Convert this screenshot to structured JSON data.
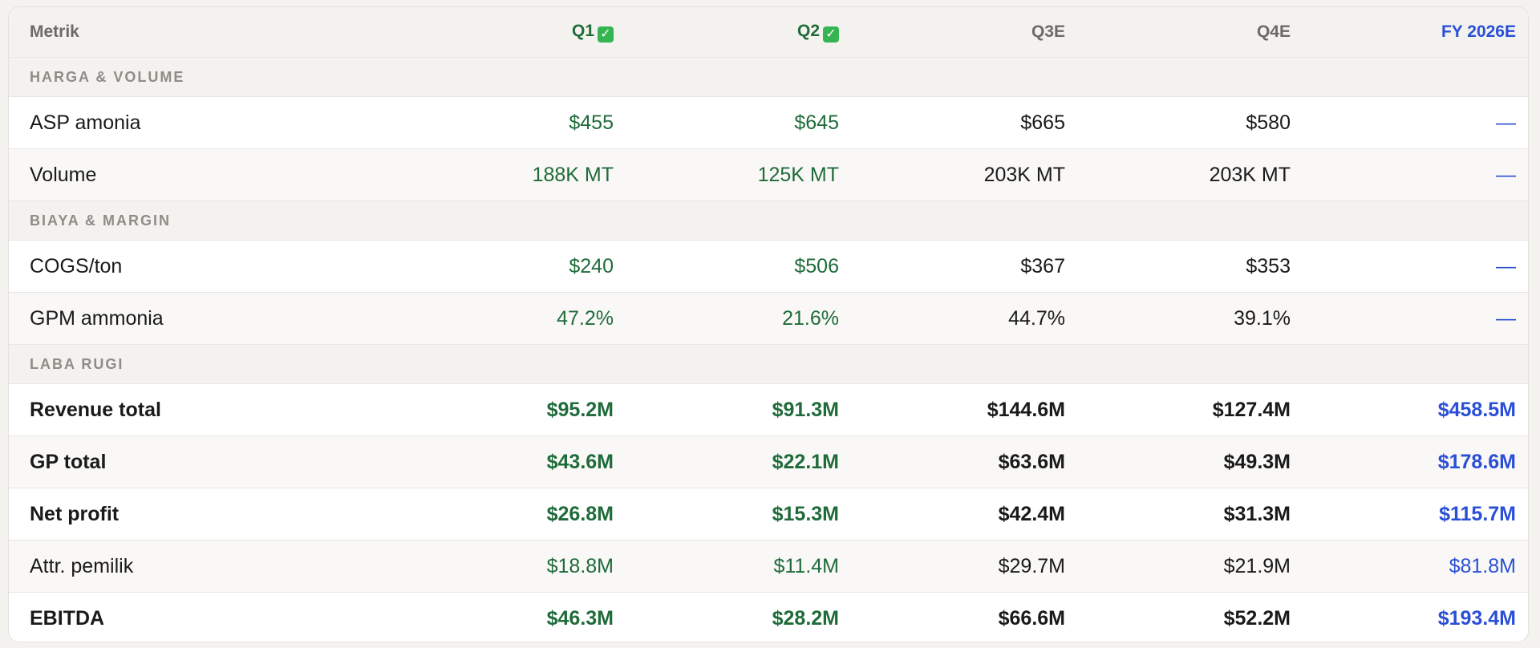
{
  "table": {
    "headers": [
      "Metrik",
      "Q1",
      "Q2",
      "Q3E",
      "Q4E",
      "FY 2026E"
    ],
    "check_icon": "✓",
    "colors": {
      "actual": "#1f6b3a",
      "fy": "#2a4fd6",
      "estimate": "#1a1a1a",
      "check": "#34b552"
    },
    "sections": [
      {
        "title": "HARGA & VOLUME",
        "rows": [
          {
            "label": "ASP amonia",
            "values": [
              "$455",
              "$645",
              "$665",
              "$580",
              "—"
            ],
            "bold": false
          },
          {
            "label": "Volume",
            "values": [
              "188K MT",
              "125K MT",
              "203K MT",
              "203K MT",
              "—"
            ],
            "bold": false
          }
        ]
      },
      {
        "title": "BIAYA & MARGIN",
        "rows": [
          {
            "label": "COGS/ton",
            "values": [
              "$240",
              "$506",
              "$367",
              "$353",
              "—"
            ],
            "bold": false
          },
          {
            "label": "GPM ammonia",
            "values": [
              "47.2%",
              "21.6%",
              "44.7%",
              "39.1%",
              "—"
            ],
            "bold": false
          }
        ]
      },
      {
        "title": "LABA RUGI",
        "rows": [
          {
            "label": "Revenue total",
            "values": [
              "$95.2M",
              "$91.3M",
              "$144.6M",
              "$127.4M",
              "$458.5M"
            ],
            "bold": true
          },
          {
            "label": "GP total",
            "values": [
              "$43.6M",
              "$22.1M",
              "$63.6M",
              "$49.3M",
              "$178.6M"
            ],
            "bold": true
          },
          {
            "label": "Net profit",
            "values": [
              "$26.8M",
              "$15.3M",
              "$42.4M",
              "$31.3M",
              "$115.7M"
            ],
            "bold": true
          },
          {
            "label": "Attr. pemilik",
            "values": [
              "$18.8M",
              "$11.4M",
              "$29.7M",
              "$21.9M",
              "$81.8M"
            ],
            "bold": false
          },
          {
            "label": "EBITDA",
            "values": [
              "$46.3M",
              "$28.2M",
              "$66.6M",
              "$52.2M",
              "$193.4M"
            ],
            "bold": true
          }
        ]
      }
    ]
  }
}
